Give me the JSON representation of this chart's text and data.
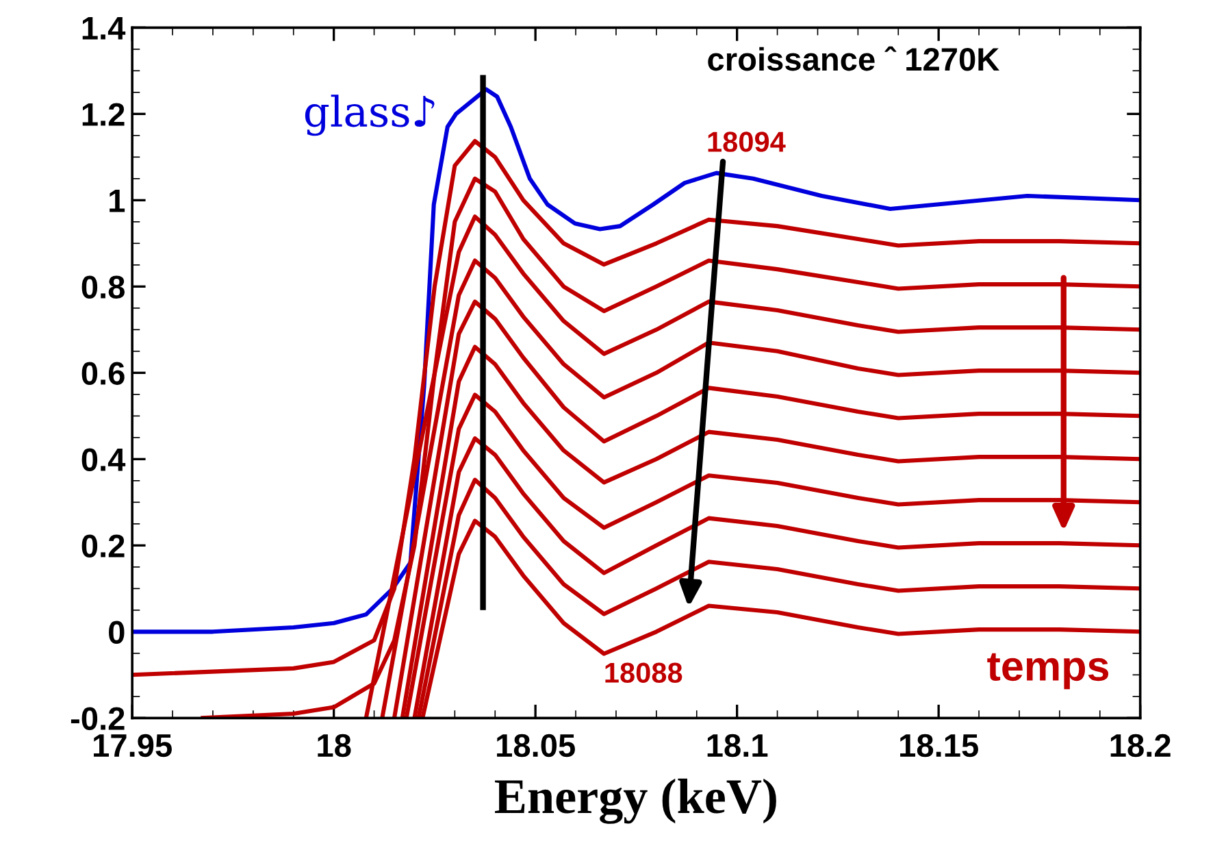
{
  "chart_data": {
    "type": "line",
    "xlabel": "Energy (keV)",
    "xlim": [
      17.95,
      18.2
    ],
    "xticks": [
      17.95,
      18,
      18.05,
      18.1,
      18.15,
      18.2
    ],
    "ylim": [
      -0.2,
      1.4
    ],
    "yticks": [
      -0.2,
      0,
      0.2,
      0.4,
      0.6,
      0.8,
      1,
      1.2,
      1.4
    ],
    "grid": false,
    "legend": false,
    "annotations": [
      "croissance ˆ 1270K",
      "18094",
      "18088",
      "temps"
    ],
    "series": [
      {
        "name": "glass♪",
        "color": "#0000dd",
        "x": [
          17.95,
          17.97,
          17.99,
          18.0,
          18.008,
          18.0146,
          18.019,
          18.0224,
          18.0248,
          18.0282,
          18.0303,
          18.0378,
          18.0405,
          18.0439,
          18.0486,
          18.053,
          18.0598,
          18.066,
          18.071,
          18.0792,
          18.087,
          18.0949,
          18.104,
          18.121,
          18.138,
          18.155,
          18.172,
          18.2
        ],
        "values": [
          0.0,
          0.0,
          0.01,
          0.02,
          0.04,
          0.1,
          0.16,
          0.57,
          0.99,
          1.17,
          1.2,
          1.257,
          1.24,
          1.17,
          1.05,
          0.99,
          0.946,
          0.933,
          0.94,
          0.99,
          1.04,
          1.063,
          1.05,
          1.01,
          0.98,
          0.995,
          1.01,
          1.0
        ]
      },
      {
        "color": "#c00000",
        "x": [
          17.95,
          17.99,
          18.0,
          18.01,
          18.015,
          18.02,
          18.025,
          18.03,
          18.035,
          18.04,
          18.047,
          18.057,
          18.067,
          18.08,
          18.093,
          18.11,
          18.13,
          18.14,
          18.16,
          18.18,
          18.2
        ],
        "values": [
          -0.1,
          -0.085,
          -0.07,
          -0.02,
          0.1,
          0.4,
          0.8,
          1.08,
          1.137,
          1.1,
          1.0,
          0.9,
          0.851,
          0.9,
          0.955,
          0.94,
          0.91,
          0.895,
          0.905,
          0.905,
          0.9
        ]
      },
      {
        "color": "#c00000",
        "x": [
          17.967,
          17.99,
          18.0,
          18.01,
          18.015,
          18.02,
          18.025,
          18.03,
          18.035,
          18.04,
          18.047,
          18.057,
          18.067,
          18.08,
          18.093,
          18.11,
          18.13,
          18.14,
          18.16,
          18.18,
          18.2
        ],
        "values": [
          -0.2,
          -0.19,
          -0.175,
          -0.12,
          -0.02,
          0.2,
          0.6,
          0.95,
          1.05,
          1.02,
          0.91,
          0.8,
          0.743,
          0.8,
          0.86,
          0.84,
          0.81,
          0.795,
          0.805,
          0.805,
          0.8
        ]
      },
      {
        "color": "#c00000",
        "x": [
          18.008,
          18.031,
          18.035,
          18.04,
          18.047,
          18.057,
          18.067,
          18.08,
          18.093,
          18.11,
          18.13,
          18.14,
          18.16,
          18.18,
          18.2
        ],
        "values": [
          -0.2,
          0.88,
          0.962,
          0.92,
          0.83,
          0.72,
          0.644,
          0.7,
          0.765,
          0.745,
          0.71,
          0.695,
          0.705,
          0.705,
          0.7
        ]
      },
      {
        "color": "#c00000",
        "x": [
          18.012,
          18.031,
          18.035,
          18.04,
          18.047,
          18.057,
          18.067,
          18.08,
          18.093,
          18.11,
          18.13,
          18.14,
          18.16,
          18.18,
          18.2
        ],
        "values": [
          -0.2,
          0.78,
          0.86,
          0.82,
          0.73,
          0.62,
          0.543,
          0.6,
          0.67,
          0.65,
          0.61,
          0.595,
          0.605,
          0.605,
          0.6
        ]
      },
      {
        "color": "#c00000",
        "x": [
          18.015,
          18.031,
          18.035,
          18.04,
          18.047,
          18.057,
          18.067,
          18.08,
          18.093,
          18.11,
          18.13,
          18.14,
          18.16,
          18.18,
          18.2
        ],
        "values": [
          -0.2,
          0.69,
          0.765,
          0.725,
          0.635,
          0.52,
          0.441,
          0.5,
          0.565,
          0.545,
          0.51,
          0.495,
          0.505,
          0.505,
          0.5
        ]
      },
      {
        "color": "#c00000",
        "x": [
          18.017,
          18.031,
          18.035,
          18.04,
          18.047,
          18.057,
          18.067,
          18.08,
          18.093,
          18.11,
          18.13,
          18.14,
          18.16,
          18.18,
          18.2
        ],
        "values": [
          -0.2,
          0.58,
          0.66,
          0.62,
          0.53,
          0.42,
          0.346,
          0.4,
          0.463,
          0.445,
          0.41,
          0.395,
          0.405,
          0.405,
          0.4
        ]
      },
      {
        "color": "#c00000",
        "x": [
          18.018,
          18.031,
          18.035,
          18.04,
          18.047,
          18.057,
          18.067,
          18.08,
          18.093,
          18.11,
          18.13,
          18.14,
          18.16,
          18.18,
          18.2
        ],
        "values": [
          -0.2,
          0.47,
          0.549,
          0.51,
          0.42,
          0.31,
          0.241,
          0.3,
          0.362,
          0.345,
          0.31,
          0.295,
          0.305,
          0.305,
          0.3
        ]
      },
      {
        "color": "#c00000",
        "x": [
          18.02,
          18.031,
          18.035,
          18.04,
          18.047,
          18.057,
          18.067,
          18.08,
          18.093,
          18.11,
          18.13,
          18.14,
          18.16,
          18.18,
          18.2
        ],
        "values": [
          -0.2,
          0.37,
          0.448,
          0.41,
          0.32,
          0.21,
          0.136,
          0.2,
          0.263,
          0.245,
          0.21,
          0.195,
          0.205,
          0.205,
          0.2
        ]
      },
      {
        "color": "#c00000",
        "x": [
          18.021,
          18.031,
          18.035,
          18.04,
          18.047,
          18.057,
          18.067,
          18.08,
          18.093,
          18.11,
          18.13,
          18.14,
          18.16,
          18.18,
          18.2
        ],
        "values": [
          -0.2,
          0.27,
          0.352,
          0.31,
          0.22,
          0.11,
          0.041,
          0.1,
          0.162,
          0.145,
          0.11,
          0.095,
          0.105,
          0.105,
          0.1
        ]
      },
      {
        "color": "#c00000",
        "x": [
          18.022,
          18.031,
          18.035,
          18.04,
          18.047,
          18.057,
          18.067,
          18.08,
          18.093,
          18.11,
          18.13,
          18.14,
          18.16,
          18.18,
          18.2
        ],
        "values": [
          -0.2,
          0.18,
          0.257,
          0.22,
          0.13,
          0.02,
          -0.051,
          0.0,
          0.06,
          0.045,
          0.01,
          -0.005,
          0.005,
          0.005,
          0.0
        ]
      },
      {
        "color": "#000000",
        "x": [
          18.037,
          18.037
        ],
        "values": [
          0.05,
          1.29
        ]
      }
    ]
  }
}
